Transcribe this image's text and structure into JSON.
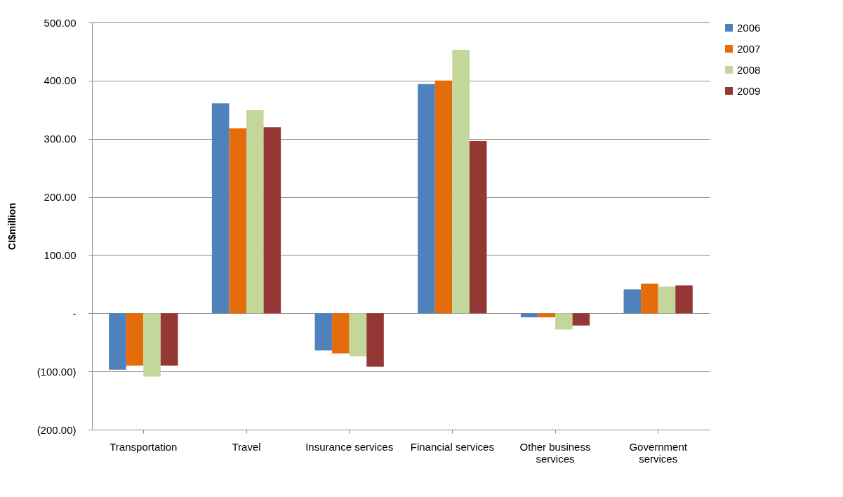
{
  "chart_data": {
    "type": "bar",
    "ylabel": "CI$million",
    "categories": [
      "Transportation",
      "Travel",
      "Insurance services",
      "Financial services",
      "Other business services",
      "Government services"
    ],
    "series": [
      {
        "name": "2006",
        "color": "#4f81bd",
        "values": [
          -97,
          361,
          -64,
          394,
          -7,
          41
        ]
      },
      {
        "name": "2007",
        "color": "#e46c0a",
        "values": [
          -90,
          318,
          -69,
          400,
          -7,
          51
        ]
      },
      {
        "name": "2008",
        "color": "#c4d79b",
        "values": [
          -109,
          349,
          -74,
          453,
          -28,
          46
        ]
      },
      {
        "name": "2009",
        "color": "#953735",
        "values": [
          -90,
          320,
          -92,
          296,
          -21,
          48
        ]
      }
    ],
    "ylim": [
      -200,
      500
    ],
    "yticks": [
      {
        "value": -200,
        "label": "(200.00)"
      },
      {
        "value": -100,
        "label": "(100.00)"
      },
      {
        "value": 0,
        "label": "-"
      },
      {
        "value": 100,
        "label": "100.00"
      },
      {
        "value": 200,
        "label": "200.00"
      },
      {
        "value": 300,
        "label": "300.00"
      },
      {
        "value": 400,
        "label": "400.00"
      },
      {
        "value": 500,
        "label": "500.00"
      }
    ],
    "grid": "y",
    "legend": "right"
  }
}
